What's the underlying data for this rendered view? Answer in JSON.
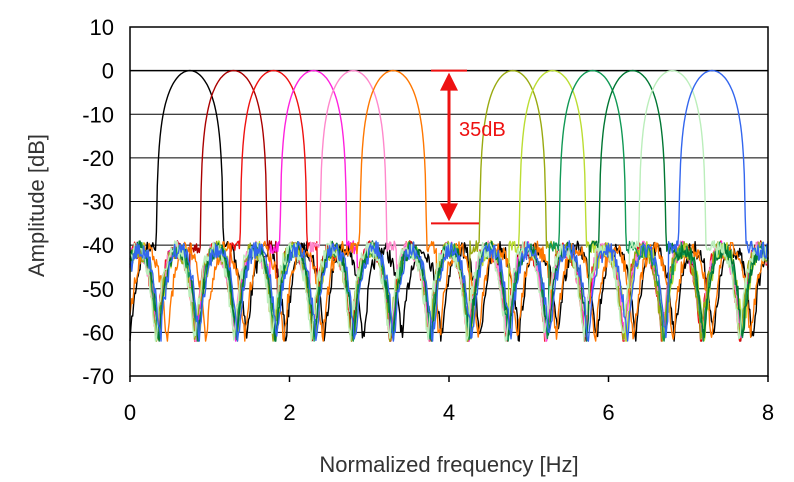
{
  "chart_data": {
    "type": "line",
    "title": "",
    "xlabel": "Normalized frequency [Hz]",
    "ylabel": "Amplitude [dB]",
    "xlim": [
      0,
      8
    ],
    "ylim": [
      -70,
      10
    ],
    "x_ticks": [
      0,
      2,
      4,
      6,
      8
    ],
    "y_ticks": [
      10,
      0,
      -10,
      -20,
      -30,
      -40,
      -50,
      -60,
      -70
    ],
    "x_tick_labels": [
      "0",
      "2",
      "4",
      "6",
      "8"
    ],
    "y_tick_labels": [
      "10",
      "0",
      "-10",
      "-20",
      "-30",
      "-40",
      "-50",
      "-60",
      "-70"
    ],
    "grid": {
      "horizontal": true,
      "vertical": false
    },
    "legend": "none",
    "notch": 4.0,
    "sidelobe_floor_db": -35,
    "series": [
      {
        "center": 0.75,
        "color": "#000000"
      },
      {
        "center": 1.3,
        "color": "#aa0000"
      },
      {
        "center": 1.8,
        "color": "#ee1111"
      },
      {
        "center": 2.3,
        "color": "#ff22dd"
      },
      {
        "center": 2.8,
        "color": "#ff88cc"
      },
      {
        "center": 3.3,
        "color": "#ff7700"
      },
      {
        "center": 4.8,
        "color": "#99aa11"
      },
      {
        "center": 5.3,
        "color": "#bbdd33"
      },
      {
        "center": 5.8,
        "color": "#119955"
      },
      {
        "center": 6.3,
        "color": "#007733"
      },
      {
        "center": 6.8,
        "color": "#bbeebb"
      },
      {
        "center": 7.3,
        "color": "#3366ee"
      }
    ],
    "annotation": {
      "text": "35dB",
      "x": 4.0,
      "y_from": 0,
      "y_to": -35,
      "color": "#ee1111"
    }
  }
}
